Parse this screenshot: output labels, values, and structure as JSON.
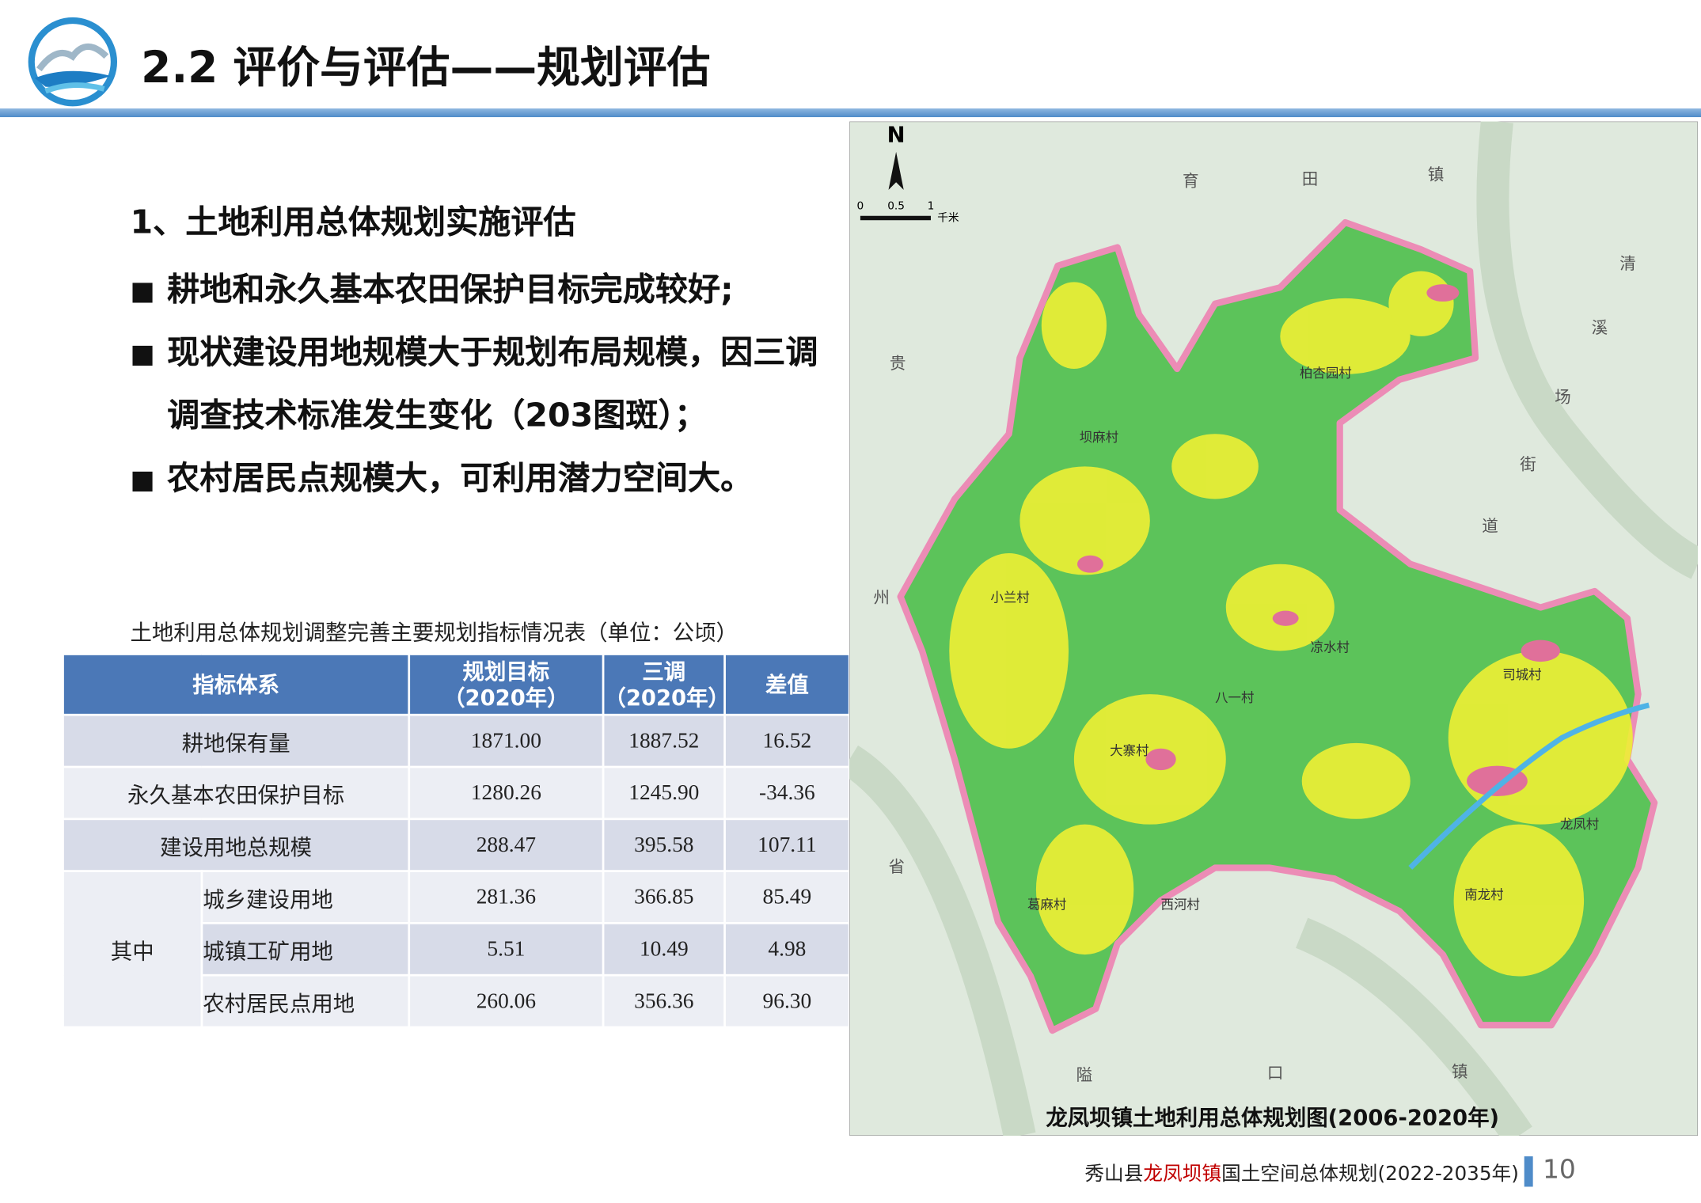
{
  "header": {
    "title": "2.2 评价与评估——规划评估"
  },
  "section": {
    "heading": "1、土地利用总体规划实施评估",
    "bullet_mark": "■",
    "bullets": [
      "耕地和永久基本农田保护目标完成较好;",
      "现状建设用地规模大于规划布局规模，因三调调查技术标准发生变化（203图斑）；",
      "农村居民点规模大，可利用潜力空间大。"
    ]
  },
  "table": {
    "caption": "土地利用总体规划调整完善主要规划指标情况表（单位：公顷）",
    "header": [
      "指标体系",
      "规划目标\n（2020年）",
      "三调\n（2020年）",
      "差值"
    ],
    "rows": [
      {
        "label": "耕地保有量",
        "values": [
          "1871.00",
          "1887.52",
          "16.52"
        ]
      },
      {
        "label": "永久基本农田保护目标",
        "values": [
          "1280.26",
          "1245.90",
          "-34.36"
        ]
      },
      {
        "label": "建设用地总规模",
        "values": [
          "288.47",
          "395.58",
          "107.11"
        ]
      }
    ],
    "group": {
      "label": "其中",
      "rows": [
        {
          "label": "城乡建设用地",
          "values": [
            "281.36",
            "366.85",
            "85.49"
          ]
        },
        {
          "label": "城镇工矿用地",
          "values": [
            "5.51",
            "10.49",
            "4.98"
          ]
        },
        {
          "label": "农村居民点用地",
          "values": [
            "260.06",
            "356.36",
            "96.30"
          ]
        }
      ]
    }
  },
  "map": {
    "north": "N",
    "scale": [
      "0",
      "0.5",
      "1",
      "千米"
    ],
    "surroundings": [
      "育",
      "田",
      "镇",
      "清",
      "溪",
      "场",
      "街",
      "道",
      "贵",
      "州",
      "省",
      "隘",
      "口",
      "镇"
    ],
    "villages": [
      "柏杏园村",
      "坝麻村",
      "小兰村",
      "凉水村",
      "司城村",
      "八一村",
      "大寨村",
      "龙凤村",
      "南龙村",
      "葛麻村",
      "西河村"
    ],
    "title": "龙凤坝镇土地利用总体规划图(2006-2020年)"
  },
  "footer": {
    "county": "秀山县",
    "town": "龙凤坝镇",
    "plan": "国土空间总体规划(2022-2035年)",
    "page": "10"
  }
}
